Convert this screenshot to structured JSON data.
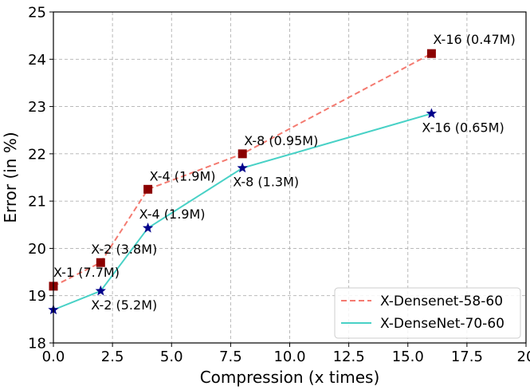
{
  "chart_data": {
    "type": "line",
    "xlabel": "Compression (x times)",
    "ylabel": "Error (in %)",
    "xlim": [
      0,
      20
    ],
    "ylim": [
      18,
      25
    ],
    "xticks": [
      {
        "value": 0,
        "label": "0.0"
      },
      {
        "value": 2.5,
        "label": "2.5"
      },
      {
        "value": 5,
        "label": "5.0"
      },
      {
        "value": 7.5,
        "label": "7.5"
      },
      {
        "value": 10,
        "label": "10.0"
      },
      {
        "value": 12.5,
        "label": "12.5"
      },
      {
        "value": 15,
        "label": "15.0"
      },
      {
        "value": 17.5,
        "label": "17.5"
      },
      {
        "value": 20,
        "label": "20"
      }
    ],
    "yticks": [
      {
        "value": 18,
        "label": "18"
      },
      {
        "value": 19,
        "label": "19"
      },
      {
        "value": 20,
        "label": "20"
      },
      {
        "value": 21,
        "label": "21"
      },
      {
        "value": 22,
        "label": "22"
      },
      {
        "value": 23,
        "label": "23"
      },
      {
        "value": 24,
        "label": "24"
      },
      {
        "value": 25,
        "label": "25"
      }
    ],
    "grid": true,
    "legend_position": "lower-right",
    "series": [
      {
        "name": "X-Densenet-58-60",
        "line_color": "#f47a70",
        "marker_color": "#8b0000",
        "line_style": "dashed",
        "marker": "square",
        "points": [
          {
            "x": 0,
            "y": 19.2,
            "label": "X-1 (7.7M)"
          },
          {
            "x": 2,
            "y": 19.7,
            "label": "X-2 (3.8M)"
          },
          {
            "x": 4,
            "y": 21.25,
            "label": "X-4 (1.9M)"
          },
          {
            "x": 8,
            "y": 22.0,
            "label": "X-8 (0.95M)"
          },
          {
            "x": 16,
            "y": 24.12,
            "label": "X-16 (0.47M)"
          }
        ]
      },
      {
        "name": "X-DenseNet-70-60",
        "line_color": "#48d1c6",
        "marker_color": "#00008b",
        "line_style": "solid",
        "marker": "star",
        "points": [
          {
            "x": 0,
            "y": 18.7,
            "label": ""
          },
          {
            "x": 2,
            "y": 19.1,
            "label": "X-2 (5.2M)"
          },
          {
            "x": 4,
            "y": 20.43,
            "label": "X-4 (1.9M)"
          },
          {
            "x": 8,
            "y": 21.7,
            "label": "X-8 (1.3M)"
          },
          {
            "x": 16,
            "y": 22.85,
            "label": "X-16 (0.65M)"
          }
        ]
      }
    ]
  }
}
